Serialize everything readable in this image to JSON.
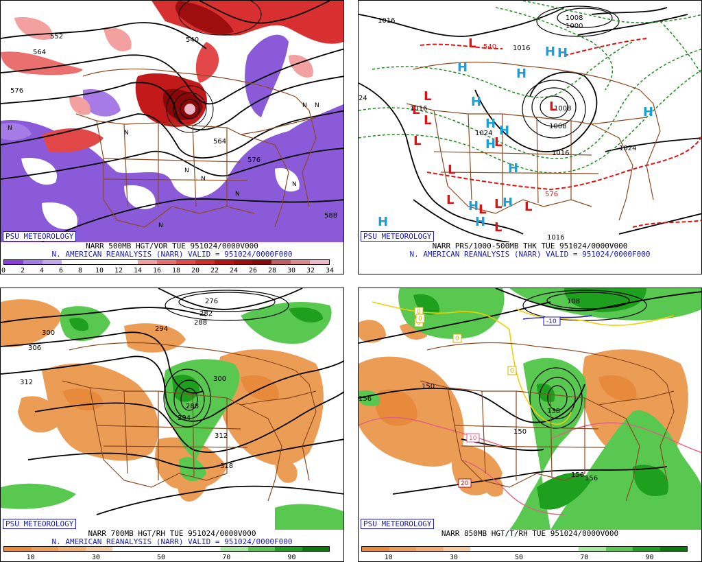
{
  "panels": [
    {
      "id": "tl",
      "logo": "PSU METEOROLOGY",
      "title_line1": "NARR 500MB HGT/VOR TUE 951024/0000V000",
      "title_line2": "N. AMERICAN REANALYSIS (NARR) VALID = 951024/0000F000",
      "colorbar": {
        "colors": [
          "#8a3dd8",
          "#a77be6",
          "#c2a8ee",
          "#ffffff",
          "#ffffff",
          "#ffffff",
          "#ffffff",
          "#f2a0a0",
          "#ea7070",
          "#e24848",
          "#d42c2c",
          "#b81414",
          "#9e0e0e",
          "#860808",
          "#c06060",
          "#d88a8a",
          "#eeb8c8"
        ],
        "labels": [
          "0",
          "2",
          "4",
          "6",
          "8",
          "10",
          "12",
          "14",
          "16",
          "18",
          "20",
          "22",
          "24",
          "26",
          "28",
          "30",
          "32",
          "34"
        ]
      },
      "contour_labels": [
        "552",
        "564",
        "576",
        "540",
        "564",
        "576",
        "588"
      ],
      "symbols": [
        "N",
        "N",
        "N",
        "N",
        "N",
        "N",
        "N",
        "N",
        "N"
      ]
    },
    {
      "id": "tr",
      "logo": "PSU METEOROLOGY",
      "title_line1": "NARR PRS/1000-500MB THK TUE 951024/0000V000",
      "title_line2": "N. AMERICAN REANALYSIS (NARR) VALID = 951024/0000F000",
      "contour_labels": [
        "1016",
        "1008",
        "1000",
        "1008",
        "540",
        "1016",
        "24",
        "1016",
        "1024",
        "1008",
        "1016",
        "1024",
        "576",
        "1016"
      ],
      "highs": [
        "H",
        "H",
        "H",
        "H",
        "H",
        "H",
        "H",
        "H",
        "H",
        "H",
        "H",
        "H",
        "H",
        "H"
      ],
      "lows": [
        "L",
        "L",
        "L",
        "L",
        "L",
        "L",
        "L",
        "L",
        "L",
        "L",
        "L",
        "L",
        "L"
      ]
    },
    {
      "id": "bl",
      "logo": "PSU METEOROLOGY",
      "title_line1": "NARR 700MB HGT/RH TUE 951024/0000V000",
      "title_line2": "N. AMERICAN REANALYSIS (NARR) VALID = 951024/0000F000",
      "colorbar": {
        "colors": [
          "#e88a3c",
          "#eb9c55",
          "#efb070",
          "#f5cca0",
          "#ffffff",
          "#ffffff",
          "#ffffff",
          "#ffffff",
          "#a8e8a0",
          "#58c850",
          "#1ea01e",
          "#0a7a0a"
        ],
        "labels": [
          "10",
          "30",
          "50",
          "70",
          "90"
        ]
      },
      "contour_labels": [
        "276",
        "282",
        "288",
        "294",
        "300",
        "306",
        "312",
        "288",
        "294",
        "300",
        "312",
        "318"
      ]
    },
    {
      "id": "br",
      "logo": "PSU METEOROLOGY",
      "title_line1": "NARR 850MB HGT/T/RH TUE 951024/0000V000",
      "colorbar": {
        "colors": [
          "#e88a3c",
          "#eb9c55",
          "#efb070",
          "#f5cca0",
          "#ffffff",
          "#ffffff",
          "#ffffff",
          "#ffffff",
          "#a8e8a0",
          "#58c850",
          "#1ea01e",
          "#0a7a0a"
        ],
        "labels": [
          "10",
          "30",
          "50",
          "70",
          "90"
        ]
      },
      "contour_labels": [
        "150",
        "156",
        "150",
        "138",
        "156",
        "156",
        "108"
      ],
      "temp_labels": [
        "-10",
        "0",
        "0",
        "0",
        "0",
        "0",
        "10",
        "20"
      ]
    }
  ]
}
